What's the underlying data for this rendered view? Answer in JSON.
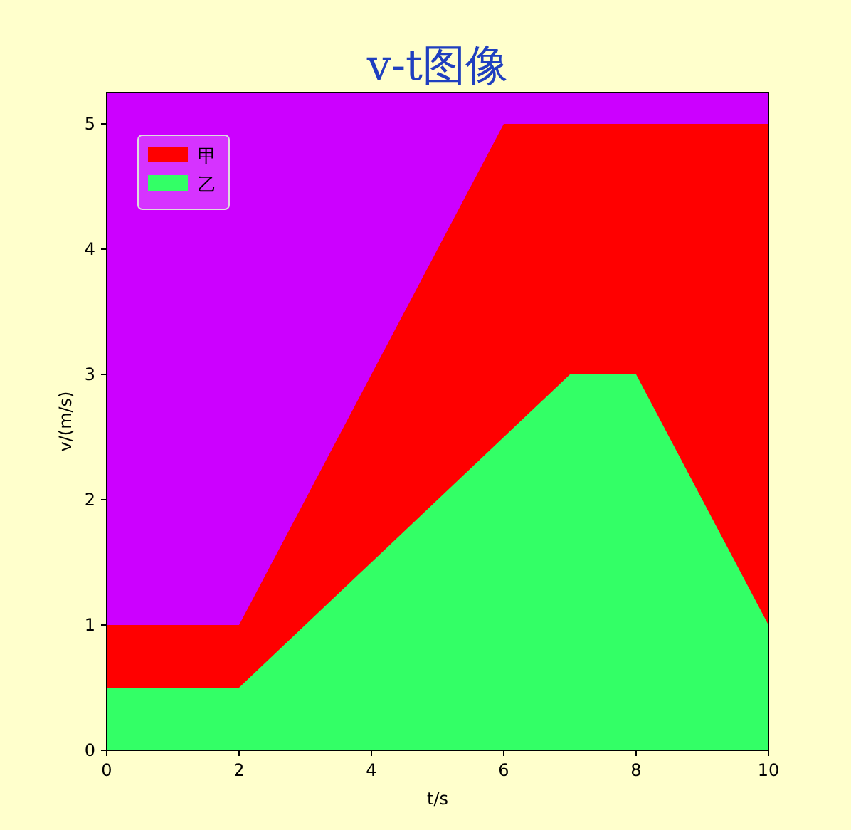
{
  "chart_data": {
    "type": "area",
    "title": "v-t图像",
    "xlabel": "t/s",
    "ylabel": "v/(m/s)",
    "xlim": [
      0,
      10
    ],
    "ylim": [
      0,
      5.25
    ],
    "xticks": [
      0,
      2,
      4,
      6,
      8,
      10
    ],
    "yticks": [
      0,
      1,
      2,
      3,
      4,
      5
    ],
    "legend": "top left",
    "grid": false,
    "series": [
      {
        "name": "甲",
        "color": "#ff0000",
        "x": [
          0,
          2,
          6,
          10
        ],
        "values": [
          1,
          1,
          5,
          5
        ]
      },
      {
        "name": "乙",
        "color": "#33ff66",
        "x": [
          0,
          2,
          7,
          8,
          10
        ],
        "values": [
          0.5,
          0.5,
          3,
          3,
          1
        ]
      }
    ]
  }
}
